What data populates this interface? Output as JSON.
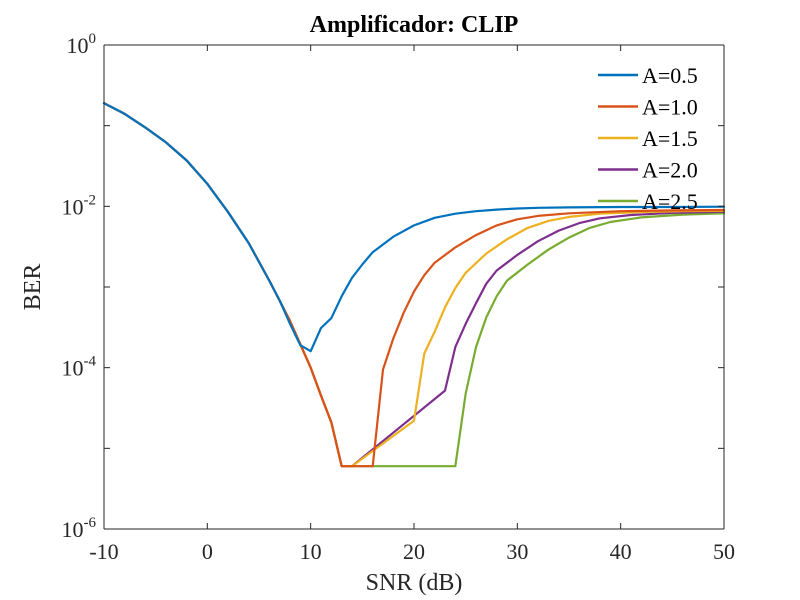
{
  "chart_data": {
    "type": "line",
    "title": "Amplificador: CLIP",
    "xlabel": "SNR (dB)",
    "ylabel": "BER",
    "x_scale": "linear",
    "y_scale": "log",
    "xlim": [
      -10,
      50
    ],
    "ylim": [
      1e-06,
      1
    ],
    "x_ticks": [
      "-10",
      "0",
      "10",
      "20",
      "30",
      "40",
      "50"
    ],
    "y_ticks": [
      {
        "base": "10",
        "exp": "0"
      },
      {
        "base": "10",
        "exp": "-2"
      },
      {
        "base": "10",
        "exp": "-4"
      },
      {
        "base": "10",
        "exp": "-6"
      }
    ],
    "grid": false,
    "legend_position": "top-right",
    "series": [
      {
        "name": "A=0.5",
        "color": "#0072BD",
        "points": [
          [
            -10,
            0.19
          ],
          [
            -8,
            0.14
          ],
          [
            -6,
            0.095
          ],
          [
            -4,
            0.062
          ],
          [
            -2,
            0.037
          ],
          [
            0,
            0.019
          ],
          [
            2,
            0.0085
          ],
          [
            4,
            0.0035
          ],
          [
            6,
            0.0012
          ],
          [
            7,
            0.00068
          ],
          [
            8,
            0.00035
          ],
          [
            9,
            0.00019
          ],
          [
            10,
            0.00016
          ],
          [
            11,
            0.00031
          ],
          [
            12,
            0.00041
          ],
          [
            13,
            0.00077
          ],
          [
            14,
            0.0013
          ],
          [
            15,
            0.0019
          ],
          [
            16,
            0.0027
          ],
          [
            18,
            0.0042
          ],
          [
            20,
            0.0058
          ],
          [
            22,
            0.0072
          ],
          [
            24,
            0.0081
          ],
          [
            26,
            0.0087
          ],
          [
            28,
            0.0091
          ],
          [
            30,
            0.0094
          ],
          [
            32,
            0.0096
          ],
          [
            35,
            0.0097
          ],
          [
            40,
            0.0098
          ],
          [
            45,
            0.0098
          ],
          [
            50,
            0.0099
          ]
        ]
      },
      {
        "name": "A=1.0",
        "color": "#D95319",
        "points": [
          [
            -10,
            0.19
          ],
          [
            -8,
            0.14
          ],
          [
            -6,
            0.095
          ],
          [
            -4,
            0.062
          ],
          [
            -2,
            0.037
          ],
          [
            0,
            0.019
          ],
          [
            2,
            0.0085
          ],
          [
            4,
            0.0035
          ],
          [
            6,
            0.0012
          ],
          [
            8,
            0.00038
          ],
          [
            10,
            0.0001
          ],
          [
            11,
            4.5e-05
          ],
          [
            12,
            2.1e-05
          ],
          [
            13,
            6e-06
          ],
          [
            14,
            6e-06
          ],
          [
            16,
            6e-06
          ],
          [
            17,
            9.5e-05
          ],
          [
            18,
            0.00023
          ],
          [
            19,
            0.00048
          ],
          [
            20,
            0.00088
          ],
          [
            21,
            0.0014
          ],
          [
            22,
            0.002
          ],
          [
            24,
            0.0031
          ],
          [
            26,
            0.0044
          ],
          [
            28,
            0.0058
          ],
          [
            30,
            0.0069
          ],
          [
            32,
            0.0076
          ],
          [
            35,
            0.0082
          ],
          [
            40,
            0.0087
          ],
          [
            45,
            0.0089
          ],
          [
            50,
            0.009
          ]
        ]
      },
      {
        "name": "A=1.5",
        "color": "#EDB120",
        "points": [
          [
            -10,
            0.19
          ],
          [
            -8,
            0.14
          ],
          [
            -6,
            0.095
          ],
          [
            -4,
            0.062
          ],
          [
            -2,
            0.037
          ],
          [
            0,
            0.019
          ],
          [
            2,
            0.0085
          ],
          [
            4,
            0.0035
          ],
          [
            6,
            0.0012
          ],
          [
            8,
            0.00038
          ],
          [
            10,
            0.0001
          ],
          [
            11,
            4.5e-05
          ],
          [
            12,
            2.1e-05
          ],
          [
            13,
            6e-06
          ],
          [
            14,
            6e-06
          ],
          [
            20,
            2.2e-05
          ],
          [
            21,
            0.00015
          ],
          [
            22,
            0.00028
          ],
          [
            23,
            0.00056
          ],
          [
            24,
            0.00097
          ],
          [
            25,
            0.0015
          ],
          [
            27,
            0.0026
          ],
          [
            29,
            0.0039
          ],
          [
            31,
            0.0054
          ],
          [
            33,
            0.0066
          ],
          [
            35,
            0.0074
          ],
          [
            38,
            0.0081
          ],
          [
            42,
            0.0085
          ],
          [
            46,
            0.0087
          ],
          [
            50,
            0.0088
          ]
        ]
      },
      {
        "name": "A=2.0",
        "color": "#7E2F8E",
        "points": [
          [
            -10,
            0.19
          ],
          [
            -8,
            0.14
          ],
          [
            -6,
            0.095
          ],
          [
            -4,
            0.062
          ],
          [
            -2,
            0.037
          ],
          [
            0,
            0.019
          ],
          [
            2,
            0.0085
          ],
          [
            4,
            0.0035
          ],
          [
            6,
            0.0012
          ],
          [
            8,
            0.00038
          ],
          [
            10,
            0.0001
          ],
          [
            11,
            4.5e-05
          ],
          [
            12,
            2.1e-05
          ],
          [
            13,
            6e-06
          ],
          [
            14,
            6e-06
          ],
          [
            23,
            5.2e-05
          ],
          [
            24,
            0.00018
          ],
          [
            25,
            0.00035
          ],
          [
            26,
            0.00063
          ],
          [
            27,
            0.0011
          ],
          [
            28,
            0.0016
          ],
          [
            30,
            0.0025
          ],
          [
            32,
            0.0037
          ],
          [
            34,
            0.005
          ],
          [
            36,
            0.0062
          ],
          [
            38,
            0.0071
          ],
          [
            41,
            0.0078
          ],
          [
            45,
            0.0083
          ],
          [
            50,
            0.0086
          ]
        ]
      },
      {
        "name": "A=2.5",
        "color": "#77AC30",
        "points": [
          [
            -10,
            0.19
          ],
          [
            -8,
            0.14
          ],
          [
            -6,
            0.095
          ],
          [
            -4,
            0.062
          ],
          [
            -2,
            0.037
          ],
          [
            0,
            0.019
          ],
          [
            2,
            0.0085
          ],
          [
            4,
            0.0035
          ],
          [
            6,
            0.0012
          ],
          [
            8,
            0.00038
          ],
          [
            10,
            0.0001
          ],
          [
            11,
            4.5e-05
          ],
          [
            12,
            2.1e-05
          ],
          [
            13,
            6e-06
          ],
          [
            14,
            6e-06
          ],
          [
            24,
            6e-06
          ],
          [
            25,
            4.8e-05
          ],
          [
            26,
            0.00018
          ],
          [
            27,
            0.00042
          ],
          [
            28,
            0.00077
          ],
          [
            29,
            0.0012
          ],
          [
            31,
            0.0019
          ],
          [
            33,
            0.0029
          ],
          [
            35,
            0.0041
          ],
          [
            37,
            0.0054
          ],
          [
            39,
            0.0064
          ],
          [
            42,
            0.0073
          ],
          [
            46,
            0.0079
          ],
          [
            50,
            0.0082
          ]
        ]
      }
    ]
  }
}
